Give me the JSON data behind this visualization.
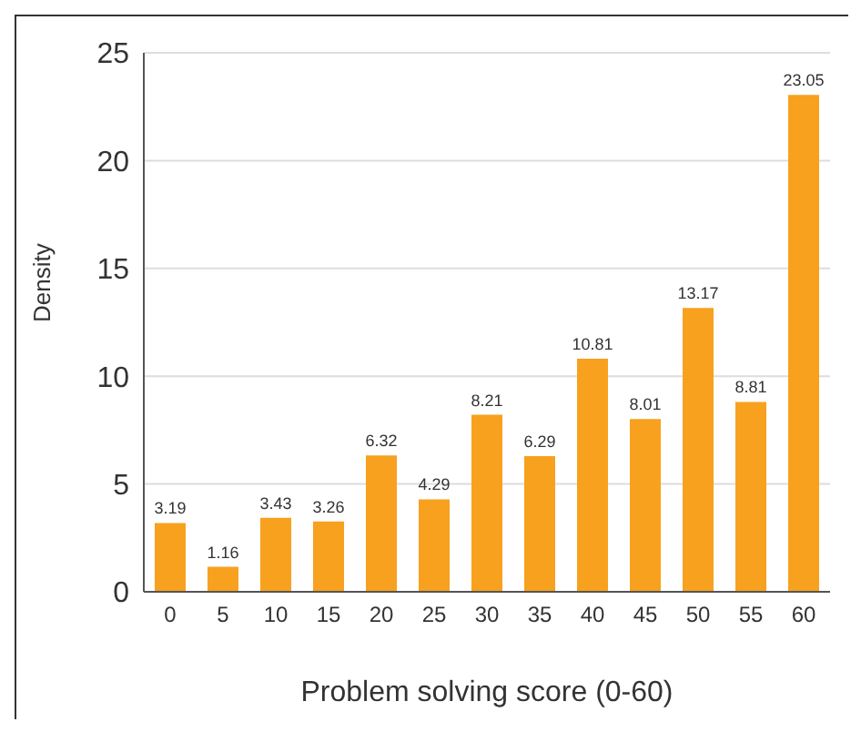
{
  "chart_data": {
    "type": "bar",
    "xlabel": "Problem solving score (0-60)",
    "ylabel": "Density",
    "categories": [
      "0",
      "5",
      "10",
      "15",
      "20",
      "25",
      "30",
      "35",
      "40",
      "45",
      "50",
      "55",
      "60"
    ],
    "values": [
      3.19,
      1.16,
      3.43,
      3.26,
      6.32,
      4.29,
      8.21,
      6.29,
      10.81,
      8.01,
      13.17,
      8.81,
      23.05
    ],
    "color": "#f7a11f",
    "ylim": [
      0,
      25
    ],
    "yticks": [
      0,
      5,
      10,
      15,
      20,
      25
    ],
    "grid": "y",
    "data_labels": true
  }
}
